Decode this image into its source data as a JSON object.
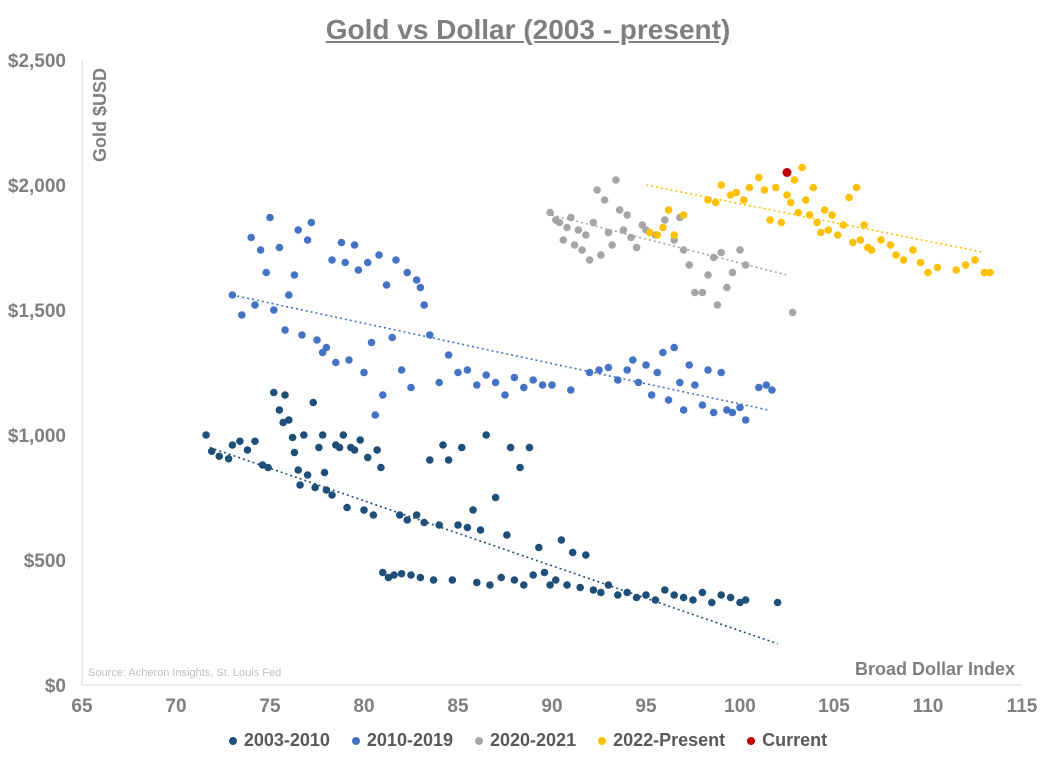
{
  "chart_data": {
    "type": "scatter",
    "title": "Gold vs Dollar (2003 - present)",
    "xlabel": "Broad Dollar Index",
    "ylabel": "Gold $USD",
    "source": "Source: Acheron Insights, St. Louis Fed",
    "xlim": [
      65,
      115
    ],
    "ylim": [
      0,
      2500
    ],
    "x_ticks": [
      "65",
      "70",
      "75",
      "80",
      "85",
      "90",
      "95",
      "100",
      "105",
      "110",
      "115"
    ],
    "y_ticks": [
      "$0",
      "$500",
      "$1,000",
      "$1,500",
      "$2,000",
      "$2,500"
    ],
    "grid": false,
    "legend_position": "bottom",
    "series": [
      {
        "name": "2003-2010",
        "color": "#1f4e79",
        "trendline": [
          [
            71.8,
            950
          ],
          [
            102,
            165
          ]
        ],
        "points": [
          [
            71.6,
            1000
          ],
          [
            71.9,
            935
          ],
          [
            72.3,
            915
          ],
          [
            72.8,
            905
          ],
          [
            73.0,
            960
          ],
          [
            73.4,
            975
          ],
          [
            73.8,
            940
          ],
          [
            74.2,
            975
          ],
          [
            74.6,
            880
          ],
          [
            74.9,
            870
          ],
          [
            75.2,
            1170
          ],
          [
            75.5,
            1100
          ],
          [
            75.7,
            1050
          ],
          [
            75.8,
            1160
          ],
          [
            76.0,
            1060
          ],
          [
            76.2,
            990
          ],
          [
            76.3,
            930
          ],
          [
            76.5,
            860
          ],
          [
            76.6,
            800
          ],
          [
            76.8,
            1000
          ],
          [
            77.0,
            840
          ],
          [
            77.3,
            1130
          ],
          [
            77.4,
            790
          ],
          [
            77.6,
            950
          ],
          [
            77.8,
            1000
          ],
          [
            77.9,
            850
          ],
          [
            78.0,
            780
          ],
          [
            78.3,
            760
          ],
          [
            78.5,
            960
          ],
          [
            78.7,
            950
          ],
          [
            78.9,
            1000
          ],
          [
            79.1,
            710
          ],
          [
            79.3,
            950
          ],
          [
            79.5,
            940
          ],
          [
            79.8,
            980
          ],
          [
            80.0,
            700
          ],
          [
            80.2,
            910
          ],
          [
            80.5,
            680
          ],
          [
            80.7,
            940
          ],
          [
            80.9,
            870
          ],
          [
            81.0,
            450
          ],
          [
            81.3,
            430
          ],
          [
            81.6,
            440
          ],
          [
            81.9,
            680
          ],
          [
            82.0,
            445
          ],
          [
            82.3,
            660
          ],
          [
            82.5,
            440
          ],
          [
            82.8,
            680
          ],
          [
            83.0,
            430
          ],
          [
            83.2,
            650
          ],
          [
            83.5,
            900
          ],
          [
            83.7,
            420
          ],
          [
            84.0,
            640
          ],
          [
            84.2,
            960
          ],
          [
            84.5,
            900
          ],
          [
            84.7,
            420
          ],
          [
            85.0,
            640
          ],
          [
            85.2,
            950
          ],
          [
            85.5,
            630
          ],
          [
            85.8,
            700
          ],
          [
            86.0,
            410
          ],
          [
            86.2,
            620
          ],
          [
            86.5,
            1000
          ],
          [
            86.7,
            400
          ],
          [
            87.0,
            750
          ],
          [
            87.3,
            430
          ],
          [
            87.6,
            600
          ],
          [
            87.8,
            950
          ],
          [
            88.0,
            420
          ],
          [
            88.3,
            870
          ],
          [
            88.5,
            400
          ],
          [
            88.8,
            950
          ],
          [
            89.0,
            440
          ],
          [
            89.3,
            550
          ],
          [
            89.6,
            450
          ],
          [
            89.9,
            400
          ],
          [
            90.2,
            420
          ],
          [
            90.5,
            580
          ],
          [
            90.8,
            400
          ],
          [
            91.1,
            530
          ],
          [
            91.5,
            390
          ],
          [
            91.8,
            520
          ],
          [
            92.2,
            380
          ],
          [
            92.6,
            370
          ],
          [
            93.0,
            400
          ],
          [
            93.5,
            360
          ],
          [
            94.0,
            370
          ],
          [
            94.5,
            350
          ],
          [
            95.0,
            360
          ],
          [
            95.5,
            340
          ],
          [
            96.0,
            380
          ],
          [
            96.5,
            360
          ],
          [
            97.0,
            350
          ],
          [
            97.5,
            340
          ],
          [
            98.0,
            370
          ],
          [
            98.5,
            330
          ],
          [
            99.0,
            360
          ],
          [
            99.5,
            350
          ],
          [
            100.0,
            330
          ],
          [
            100.3,
            340
          ],
          [
            102.0,
            330
          ]
        ]
      },
      {
        "name": "2010-2019",
        "color": "#4472c4",
        "trendline": [
          [
            73,
            1560
          ],
          [
            101.5,
            1100
          ]
        ],
        "points": [
          [
            73.0,
            1560
          ],
          [
            73.5,
            1480
          ],
          [
            74.0,
            1790
          ],
          [
            74.2,
            1520
          ],
          [
            74.5,
            1740
          ],
          [
            74.8,
            1650
          ],
          [
            75.0,
            1870
          ],
          [
            75.2,
            1500
          ],
          [
            75.5,
            1750
          ],
          [
            75.8,
            1420
          ],
          [
            76.0,
            1560
          ],
          [
            76.3,
            1640
          ],
          [
            76.5,
            1820
          ],
          [
            76.7,
            1400
          ],
          [
            77.0,
            1780
          ],
          [
            77.2,
            1850
          ],
          [
            77.5,
            1380
          ],
          [
            77.8,
            1330
          ],
          [
            78.0,
            1350
          ],
          [
            78.3,
            1700
          ],
          [
            78.5,
            1290
          ],
          [
            78.8,
            1770
          ],
          [
            79.0,
            1690
          ],
          [
            79.2,
            1300
          ],
          [
            79.5,
            1760
          ],
          [
            79.7,
            1660
          ],
          [
            80.0,
            1250
          ],
          [
            80.2,
            1690
          ],
          [
            80.4,
            1370
          ],
          [
            80.6,
            1080
          ],
          [
            80.8,
            1720
          ],
          [
            81.0,
            1160
          ],
          [
            81.2,
            1600
          ],
          [
            81.5,
            1390
          ],
          [
            81.7,
            1700
          ],
          [
            82.0,
            1260
          ],
          [
            82.3,
            1650
          ],
          [
            82.5,
            1190
          ],
          [
            82.8,
            1620
          ],
          [
            83.0,
            1590
          ],
          [
            83.2,
            1520
          ],
          [
            83.5,
            1400
          ],
          [
            84.0,
            1210
          ],
          [
            84.5,
            1320
          ],
          [
            85.0,
            1250
          ],
          [
            85.5,
            1260
          ],
          [
            86.0,
            1200
          ],
          [
            86.5,
            1240
          ],
          [
            87.0,
            1210
          ],
          [
            87.5,
            1160
          ],
          [
            88.0,
            1230
          ],
          [
            88.5,
            1190
          ],
          [
            89.0,
            1220
          ],
          [
            89.5,
            1200
          ],
          [
            90.0,
            1200
          ],
          [
            91.0,
            1180
          ],
          [
            92.0,
            1250
          ],
          [
            92.5,
            1260
          ],
          [
            93.0,
            1270
          ],
          [
            93.5,
            1220
          ],
          [
            94.0,
            1260
          ],
          [
            94.3,
            1300
          ],
          [
            94.6,
            1210
          ],
          [
            95.0,
            1280
          ],
          [
            95.3,
            1160
          ],
          [
            95.6,
            1250
          ],
          [
            95.9,
            1330
          ],
          [
            96.2,
            1140
          ],
          [
            96.5,
            1350
          ],
          [
            96.8,
            1210
          ],
          [
            97.0,
            1100
          ],
          [
            97.3,
            1280
          ],
          [
            97.6,
            1200
          ],
          [
            98.0,
            1120
          ],
          [
            98.3,
            1260
          ],
          [
            98.6,
            1090
          ],
          [
            99.0,
            1250
          ],
          [
            99.3,
            1100
          ],
          [
            99.6,
            1090
          ],
          [
            100.0,
            1110
          ],
          [
            100.3,
            1060
          ],
          [
            101.0,
            1190
          ],
          [
            101.4,
            1200
          ],
          [
            101.7,
            1180
          ]
        ]
      },
      {
        "name": "2020-2021",
        "color": "#a5a5a5",
        "trendline": [
          [
            90,
            1880
          ],
          [
            102.5,
            1640
          ]
        ],
        "points": [
          [
            89.9,
            1890
          ],
          [
            90.2,
            1860
          ],
          [
            90.4,
            1850
          ],
          [
            90.6,
            1780
          ],
          [
            90.8,
            1830
          ],
          [
            91.0,
            1870
          ],
          [
            91.2,
            1760
          ],
          [
            91.4,
            1820
          ],
          [
            91.6,
            1740
          ],
          [
            91.8,
            1800
          ],
          [
            92.0,
            1700
          ],
          [
            92.2,
            1850
          ],
          [
            92.4,
            1980
          ],
          [
            92.6,
            1720
          ],
          [
            92.8,
            1940
          ],
          [
            93.0,
            1810
          ],
          [
            93.2,
            1760
          ],
          [
            93.4,
            2020
          ],
          [
            93.6,
            1900
          ],
          [
            93.8,
            1820
          ],
          [
            94.0,
            1880
          ],
          [
            94.2,
            1790
          ],
          [
            94.5,
            1750
          ],
          [
            94.8,
            1840
          ],
          [
            95.0,
            1820
          ],
          [
            95.5,
            1800
          ],
          [
            96.0,
            1860
          ],
          [
            96.5,
            1780
          ],
          [
            96.8,
            1870
          ],
          [
            97.0,
            1740
          ],
          [
            97.3,
            1680
          ],
          [
            97.6,
            1570
          ],
          [
            98.0,
            1570
          ],
          [
            98.3,
            1640
          ],
          [
            98.6,
            1710
          ],
          [
            98.8,
            1520
          ],
          [
            99.0,
            1730
          ],
          [
            99.3,
            1590
          ],
          [
            99.6,
            1650
          ],
          [
            100.0,
            1740
          ],
          [
            100.3,
            1680
          ],
          [
            102.8,
            1490
          ]
        ]
      },
      {
        "name": "2022-Present",
        "color": "#ffc000",
        "trendline": [
          [
            95,
            2000
          ],
          [
            113,
            1730
          ]
        ],
        "points": [
          [
            95.2,
            1810
          ],
          [
            95.6,
            1800
          ],
          [
            95.9,
            1830
          ],
          [
            96.2,
            1900
          ],
          [
            96.5,
            1800
          ],
          [
            97.0,
            1880
          ],
          [
            98.3,
            1940
          ],
          [
            98.7,
            1930
          ],
          [
            99.0,
            2000
          ],
          [
            99.5,
            1960
          ],
          [
            99.8,
            1970
          ],
          [
            100.2,
            1940
          ],
          [
            100.5,
            1990
          ],
          [
            101.0,
            2030
          ],
          [
            101.3,
            1980
          ],
          [
            101.6,
            1860
          ],
          [
            101.9,
            1990
          ],
          [
            102.2,
            1850
          ],
          [
            102.5,
            1960
          ],
          [
            102.7,
            1930
          ],
          [
            102.9,
            2020
          ],
          [
            103.1,
            1890
          ],
          [
            103.3,
            2070
          ],
          [
            103.5,
            1940
          ],
          [
            103.7,
            1880
          ],
          [
            103.9,
            1990
          ],
          [
            104.1,
            1850
          ],
          [
            104.3,
            1810
          ],
          [
            104.5,
            1900
          ],
          [
            104.7,
            1820
          ],
          [
            104.9,
            1880
          ],
          [
            105.2,
            1800
          ],
          [
            105.5,
            1840
          ],
          [
            105.8,
            1950
          ],
          [
            106.0,
            1770
          ],
          [
            106.2,
            1990
          ],
          [
            106.4,
            1780
          ],
          [
            106.6,
            1840
          ],
          [
            106.8,
            1750
          ],
          [
            107.0,
            1740
          ],
          [
            107.5,
            1780
          ],
          [
            108.0,
            1760
          ],
          [
            108.3,
            1720
          ],
          [
            108.7,
            1700
          ],
          [
            109.2,
            1740
          ],
          [
            109.6,
            1690
          ],
          [
            110.0,
            1650
          ],
          [
            110.5,
            1670
          ],
          [
            111.5,
            1660
          ],
          [
            112.0,
            1680
          ],
          [
            112.5,
            1700
          ],
          [
            113.0,
            1650
          ],
          [
            113.3,
            1650
          ]
        ]
      },
      {
        "name": "Current",
        "color": "#c00000",
        "points": [
          [
            102.5,
            2050
          ]
        ]
      }
    ]
  }
}
